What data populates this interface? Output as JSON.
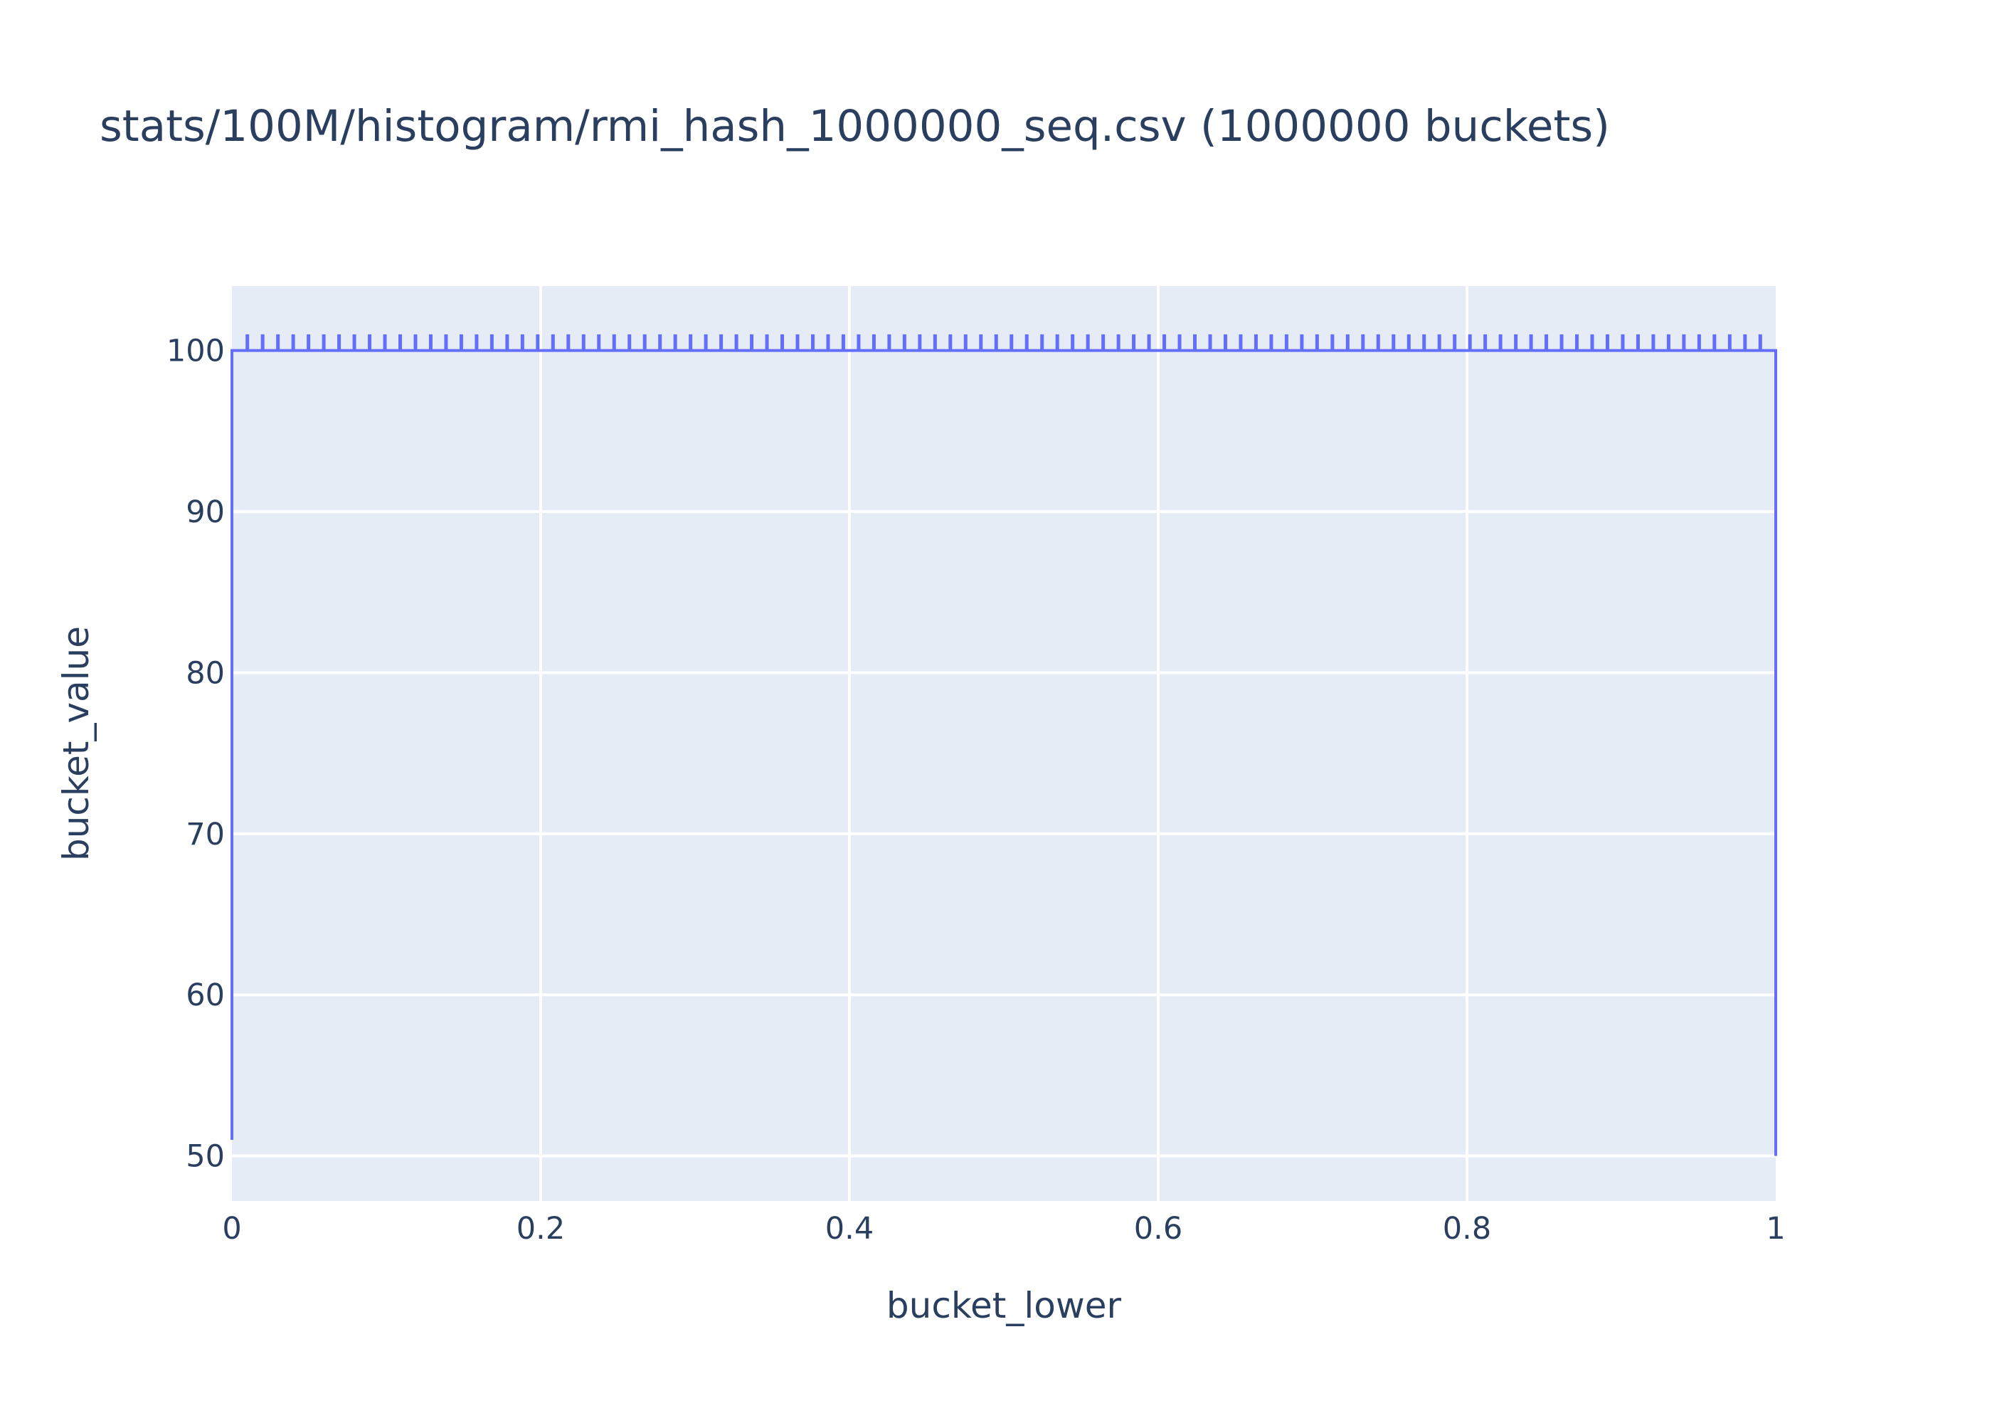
{
  "chart_data": {
    "type": "line",
    "title": "stats/100M/histogram/rmi_hash_1000000_seq.csv (1000000 buckets)",
    "xlabel": "bucket_lower",
    "ylabel": "bucket_value",
    "xlim": [
      0,
      1
    ],
    "ylim": [
      47.2,
      104
    ],
    "x_ticks": [
      0,
      0.2,
      0.4,
      0.6,
      0.8,
      1
    ],
    "x_tick_labels": [
      "0",
      "0.2",
      "0.4",
      "0.6",
      "0.8",
      "1"
    ],
    "y_ticks": [
      50,
      60,
      70,
      80,
      90,
      100
    ],
    "y_tick_labels": [
      "50",
      "60",
      "70",
      "80",
      "90",
      "100"
    ],
    "grid": true,
    "background": "#e5ecf6",
    "series": [
      {
        "color": "#636efa",
        "points": [
          [
            0,
            51
          ],
          [
            0,
            100
          ],
          [
            1,
            100
          ],
          [
            1,
            50
          ]
        ],
        "spikes": {
          "x_start": 0.01,
          "x_end": 0.99,
          "count": 100,
          "low": 100,
          "high": 101
        }
      }
    ]
  }
}
